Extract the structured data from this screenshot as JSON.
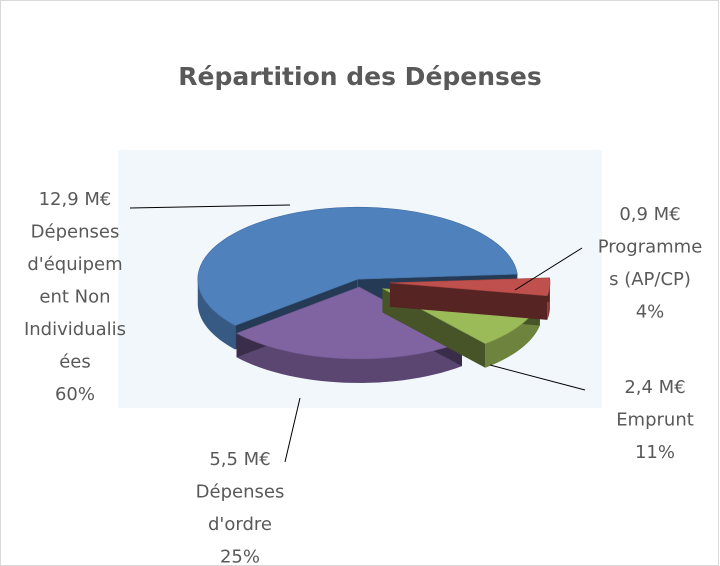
{
  "chart_data": {
    "type": "pie",
    "title": "Répartition des Dépenses",
    "categories": [
      [
        "Dépenses",
        "d'équipem",
        "ent  Non",
        "Individualis",
        "ées"
      ],
      [
        "Dépenses",
        "d'ordre"
      ],
      [
        "Emprunt"
      ],
      [
        "Programme",
        "s  (AP/CP)"
      ]
    ],
    "amount_labels": [
      "12,9 M€",
      "5,5 M€",
      "2,4 M€",
      "0,9 M€"
    ],
    "values": [
      60,
      25,
      11,
      4
    ],
    "value_labels": [
      "60%",
      "25%",
      "11%",
      "4%"
    ],
    "colors": [
      "#4f81bd",
      "#8064a2",
      "#9bbb59",
      "#c0504d"
    ]
  }
}
